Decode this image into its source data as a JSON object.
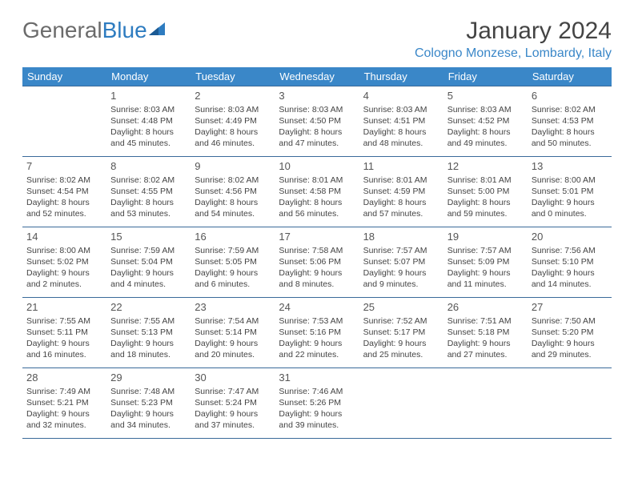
{
  "logo": {
    "general": "General",
    "blue": "Blue"
  },
  "title": "January 2024",
  "location": "Cologno Monzese, Lombardy, Italy",
  "colors": {
    "header_bg": "#3a87c8",
    "header_text": "#ffffff",
    "border": "#3a6a9a",
    "logo_gray": "#6b6b6b",
    "logo_blue": "#2e7cc0",
    "location_color": "#3a87c8"
  },
  "weekdays": [
    "Sunday",
    "Monday",
    "Tuesday",
    "Wednesday",
    "Thursday",
    "Friday",
    "Saturday"
  ],
  "weeks": [
    [
      null,
      {
        "n": "1",
        "sr": "Sunrise: 8:03 AM",
        "ss": "Sunset: 4:48 PM",
        "d1": "Daylight: 8 hours",
        "d2": "and 45 minutes."
      },
      {
        "n": "2",
        "sr": "Sunrise: 8:03 AM",
        "ss": "Sunset: 4:49 PM",
        "d1": "Daylight: 8 hours",
        "d2": "and 46 minutes."
      },
      {
        "n": "3",
        "sr": "Sunrise: 8:03 AM",
        "ss": "Sunset: 4:50 PM",
        "d1": "Daylight: 8 hours",
        "d2": "and 47 minutes."
      },
      {
        "n": "4",
        "sr": "Sunrise: 8:03 AM",
        "ss": "Sunset: 4:51 PM",
        "d1": "Daylight: 8 hours",
        "d2": "and 48 minutes."
      },
      {
        "n": "5",
        "sr": "Sunrise: 8:03 AM",
        "ss": "Sunset: 4:52 PM",
        "d1": "Daylight: 8 hours",
        "d2": "and 49 minutes."
      },
      {
        "n": "6",
        "sr": "Sunrise: 8:02 AM",
        "ss": "Sunset: 4:53 PM",
        "d1": "Daylight: 8 hours",
        "d2": "and 50 minutes."
      }
    ],
    [
      {
        "n": "7",
        "sr": "Sunrise: 8:02 AM",
        "ss": "Sunset: 4:54 PM",
        "d1": "Daylight: 8 hours",
        "d2": "and 52 minutes."
      },
      {
        "n": "8",
        "sr": "Sunrise: 8:02 AM",
        "ss": "Sunset: 4:55 PM",
        "d1": "Daylight: 8 hours",
        "d2": "and 53 minutes."
      },
      {
        "n": "9",
        "sr": "Sunrise: 8:02 AM",
        "ss": "Sunset: 4:56 PM",
        "d1": "Daylight: 8 hours",
        "d2": "and 54 minutes."
      },
      {
        "n": "10",
        "sr": "Sunrise: 8:01 AM",
        "ss": "Sunset: 4:58 PM",
        "d1": "Daylight: 8 hours",
        "d2": "and 56 minutes."
      },
      {
        "n": "11",
        "sr": "Sunrise: 8:01 AM",
        "ss": "Sunset: 4:59 PM",
        "d1": "Daylight: 8 hours",
        "d2": "and 57 minutes."
      },
      {
        "n": "12",
        "sr": "Sunrise: 8:01 AM",
        "ss": "Sunset: 5:00 PM",
        "d1": "Daylight: 8 hours",
        "d2": "and 59 minutes."
      },
      {
        "n": "13",
        "sr": "Sunrise: 8:00 AM",
        "ss": "Sunset: 5:01 PM",
        "d1": "Daylight: 9 hours",
        "d2": "and 0 minutes."
      }
    ],
    [
      {
        "n": "14",
        "sr": "Sunrise: 8:00 AM",
        "ss": "Sunset: 5:02 PM",
        "d1": "Daylight: 9 hours",
        "d2": "and 2 minutes."
      },
      {
        "n": "15",
        "sr": "Sunrise: 7:59 AM",
        "ss": "Sunset: 5:04 PM",
        "d1": "Daylight: 9 hours",
        "d2": "and 4 minutes."
      },
      {
        "n": "16",
        "sr": "Sunrise: 7:59 AM",
        "ss": "Sunset: 5:05 PM",
        "d1": "Daylight: 9 hours",
        "d2": "and 6 minutes."
      },
      {
        "n": "17",
        "sr": "Sunrise: 7:58 AM",
        "ss": "Sunset: 5:06 PM",
        "d1": "Daylight: 9 hours",
        "d2": "and 8 minutes."
      },
      {
        "n": "18",
        "sr": "Sunrise: 7:57 AM",
        "ss": "Sunset: 5:07 PM",
        "d1": "Daylight: 9 hours",
        "d2": "and 9 minutes."
      },
      {
        "n": "19",
        "sr": "Sunrise: 7:57 AM",
        "ss": "Sunset: 5:09 PM",
        "d1": "Daylight: 9 hours",
        "d2": "and 11 minutes."
      },
      {
        "n": "20",
        "sr": "Sunrise: 7:56 AM",
        "ss": "Sunset: 5:10 PM",
        "d1": "Daylight: 9 hours",
        "d2": "and 14 minutes."
      }
    ],
    [
      {
        "n": "21",
        "sr": "Sunrise: 7:55 AM",
        "ss": "Sunset: 5:11 PM",
        "d1": "Daylight: 9 hours",
        "d2": "and 16 minutes."
      },
      {
        "n": "22",
        "sr": "Sunrise: 7:55 AM",
        "ss": "Sunset: 5:13 PM",
        "d1": "Daylight: 9 hours",
        "d2": "and 18 minutes."
      },
      {
        "n": "23",
        "sr": "Sunrise: 7:54 AM",
        "ss": "Sunset: 5:14 PM",
        "d1": "Daylight: 9 hours",
        "d2": "and 20 minutes."
      },
      {
        "n": "24",
        "sr": "Sunrise: 7:53 AM",
        "ss": "Sunset: 5:16 PM",
        "d1": "Daylight: 9 hours",
        "d2": "and 22 minutes."
      },
      {
        "n": "25",
        "sr": "Sunrise: 7:52 AM",
        "ss": "Sunset: 5:17 PM",
        "d1": "Daylight: 9 hours",
        "d2": "and 25 minutes."
      },
      {
        "n": "26",
        "sr": "Sunrise: 7:51 AM",
        "ss": "Sunset: 5:18 PM",
        "d1": "Daylight: 9 hours",
        "d2": "and 27 minutes."
      },
      {
        "n": "27",
        "sr": "Sunrise: 7:50 AM",
        "ss": "Sunset: 5:20 PM",
        "d1": "Daylight: 9 hours",
        "d2": "and 29 minutes."
      }
    ],
    [
      {
        "n": "28",
        "sr": "Sunrise: 7:49 AM",
        "ss": "Sunset: 5:21 PM",
        "d1": "Daylight: 9 hours",
        "d2": "and 32 minutes."
      },
      {
        "n": "29",
        "sr": "Sunrise: 7:48 AM",
        "ss": "Sunset: 5:23 PM",
        "d1": "Daylight: 9 hours",
        "d2": "and 34 minutes."
      },
      {
        "n": "30",
        "sr": "Sunrise: 7:47 AM",
        "ss": "Sunset: 5:24 PM",
        "d1": "Daylight: 9 hours",
        "d2": "and 37 minutes."
      },
      {
        "n": "31",
        "sr": "Sunrise: 7:46 AM",
        "ss": "Sunset: 5:26 PM",
        "d1": "Daylight: 9 hours",
        "d2": "and 39 minutes."
      },
      null,
      null,
      null
    ]
  ]
}
